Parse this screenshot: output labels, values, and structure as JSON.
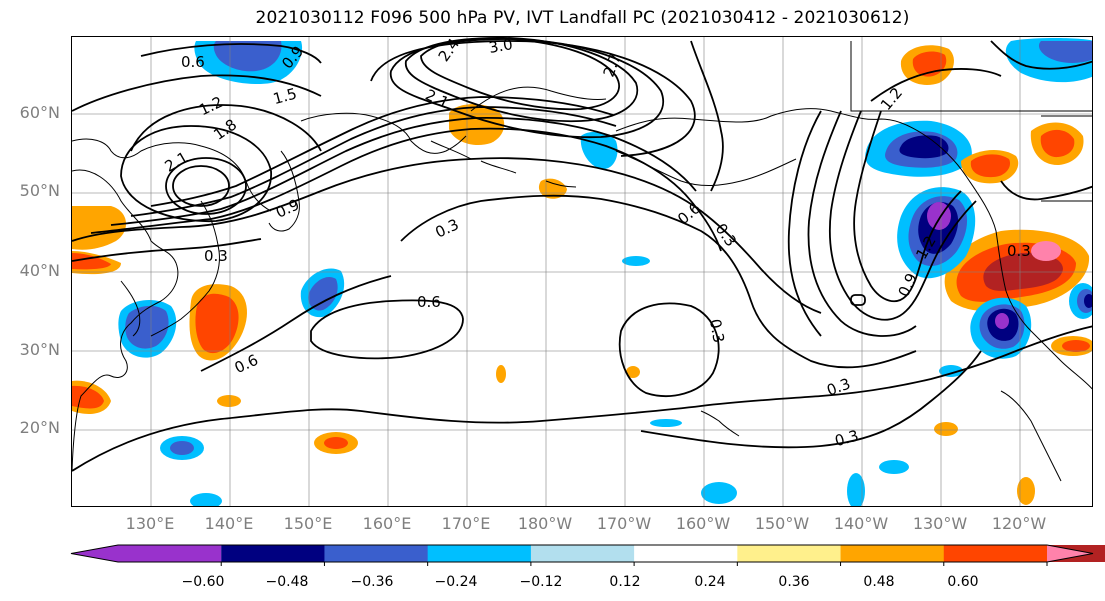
{
  "title": "2021030112 F096 500 hPa PV, IVT Landfall PC (2021030412 - 2021030612)",
  "lat_labels": [
    "60°N",
    "50°N",
    "40°N",
    "30°N",
    "20°N"
  ],
  "lon_labels": [
    "130°E",
    "140°E",
    "150°E",
    "160°E",
    "170°E",
    "180°W",
    "170°W",
    "160°W",
    "150°W",
    "140°W",
    "130°W",
    "120°W"
  ],
  "contour_labels": [
    "0.6",
    "0.9",
    "1.2",
    "1.5",
    "1.8",
    "2.1",
    "2.4",
    "2.7",
    "3.0",
    "2.1",
    "0.9",
    "0.3",
    "0.6",
    "0.3",
    "0.6",
    "0.6",
    "0.3",
    "0.3",
    "0.9",
    "1.2",
    "0.3",
    "0.3",
    "0.3",
    "1.2"
  ],
  "colorbar": {
    "colors": [
      "#9932cc",
      "#000080",
      "#3a5fcd",
      "#00bfff",
      "#b2dfee",
      "#ffffff",
      "#fff08c",
      "#ffa500",
      "#ff4500",
      "#b22222",
      "#ff82ab"
    ],
    "tick_labels": [
      "−0.60",
      "−0.48",
      "−0.36",
      "−0.24",
      "−0.12",
      "0.12",
      "0.24",
      "0.36",
      "0.48",
      "0.60"
    ]
  },
  "colors": {
    "land_outline": "#000000",
    "grid": "#808080",
    "label_gray": "#7f7f7f"
  }
}
